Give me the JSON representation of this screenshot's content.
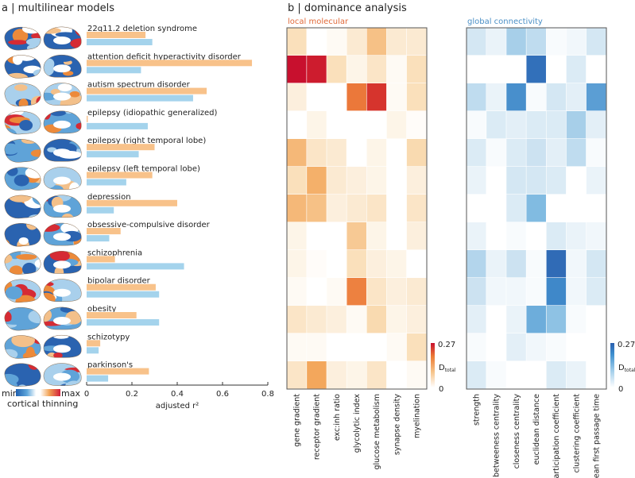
{
  "panel_a": {
    "title": "a | multilinear models",
    "legend": {
      "min": "min",
      "max": "max",
      "label": "cortical thinning"
    },
    "colors": {
      "local": "#f8c28a",
      "global": "#a4d3ec"
    }
  },
  "panel_b": {
    "title": "b | dominance analysis",
    "local_title": "local molecular",
    "global_title": "global connectivity",
    "colors": {
      "local_title": "#e06a3a",
      "global_title": "#4a8fc6"
    },
    "colorbar_local": {
      "max": "0.27",
      "min": "0",
      "label": "D",
      "sub": "total"
    },
    "colorbar_global": {
      "max": "0.27",
      "min": "0",
      "label": "D",
      "sub": "total"
    }
  },
  "chart_data": [
    {
      "type": "bar",
      "orientation": "horizontal",
      "categories": [
        "22q11.2 deletion syndrome",
        "attention deficit hyperactivity disorder",
        "autism spectrum disorder",
        "epilepsy (idiopathic generalized)",
        "epilepsy (right temporal lobe)",
        "epilepsy (left temporal lobe)",
        "depression",
        "obsessive-compulsive disorder",
        "schizophrenia",
        "bipolar disorder",
        "obesity",
        "schizotypy",
        "parkinson's"
      ],
      "series": [
        {
          "values": [
            0.26,
            0.73,
            0.53,
            0.005,
            0.3,
            0.29,
            0.4,
            0.15,
            0.125,
            0.305,
            0.22,
            0.06,
            0.275
          ],
          "color": "#f8c28a"
        },
        {
          "values": [
            0.29,
            0.24,
            0.47,
            0.27,
            0.23,
            0.175,
            0.12,
            0.1,
            0.43,
            0.32,
            0.32,
            0.053,
            0.095
          ],
          "color": "#a4d3ec"
        }
      ],
      "xlabel": "adjusted r²",
      "xlim": [
        0,
        0.8
      ],
      "xticks": [
        "0",
        "0.2",
        "0.4",
        "0.6",
        "0.8"
      ]
    },
    {
      "type": "heatmap",
      "title": "local molecular",
      "columns": [
        "gene gradient",
        "receptor gradient",
        "exc:inh ratio",
        "glycolytic index",
        "glucose metabolism",
        "synapse density",
        "myelination"
      ],
      "rows_ref": "same as bar categories",
      "range": [
        0,
        0.27
      ],
      "colormap": [
        "#ffffff",
        "#f9dcb3",
        "#f2a355",
        "#e8622c",
        "#c8102e"
      ],
      "values": [
        [
          0.06,
          0,
          0.01,
          0.04,
          0.1,
          0.04,
          0.04
        ],
        [
          0.27,
          0.26,
          0.06,
          0.02,
          0.05,
          0.01,
          0.06
        ],
        [
          0.03,
          0,
          0,
          0.18,
          0.24,
          0.01,
          0.06
        ],
        [
          0,
          0.02,
          0,
          0,
          0,
          0.02,
          0.005
        ],
        [
          0.11,
          0.05,
          0.04,
          0,
          0.02,
          0,
          0.07
        ],
        [
          0.06,
          0.12,
          0.04,
          0.03,
          0.02,
          0,
          0.03
        ],
        [
          0.11,
          0.1,
          0.03,
          0.04,
          0.05,
          0,
          0.05
        ],
        [
          0.02,
          0,
          0,
          0.09,
          0.02,
          0,
          0.03
        ],
        [
          0.02,
          0.005,
          0,
          0.06,
          0.03,
          0.02,
          0
        ],
        [
          0.01,
          0,
          0.01,
          0.17,
          0.05,
          0.03,
          0.04
        ],
        [
          0.05,
          0.04,
          0.03,
          0.01,
          0.07,
          0.02,
          0.03
        ],
        [
          0.01,
          0.01,
          0,
          0,
          0,
          0.01,
          0.06
        ],
        [
          0.05,
          0.13,
          0.03,
          0.02,
          0.05,
          0,
          0.01
        ]
      ]
    },
    {
      "type": "heatmap",
      "title": "global connectivity",
      "columns": [
        "strength",
        "betweeness centrality",
        "closeness centrality",
        "euclidean distance",
        "participation coefficient",
        "clustering coefficient",
        "mean first passage time"
      ],
      "range": [
        0,
        0.27
      ],
      "colormap": [
        "#ffffff",
        "#cfe4f2",
        "#7bb8e0",
        "#3d86c8",
        "#2a5fae"
      ],
      "values": [
        [
          0.06,
          0.03,
          0.1,
          0.08,
          0.01,
          0.02,
          0.06
        ],
        [
          0,
          0,
          0,
          0.24,
          0,
          0.05,
          0
        ],
        [
          0.08,
          0.03,
          0.19,
          0.01,
          0.06,
          0.04,
          0.17
        ],
        [
          0.01,
          0.05,
          0.04,
          0.05,
          0.05,
          0.1,
          0.04
        ],
        [
          0.05,
          0.01,
          0.05,
          0.07,
          0.04,
          0.08,
          0.01
        ],
        [
          0.03,
          0,
          0.06,
          0.06,
          0.05,
          0,
          0.03
        ],
        [
          0,
          0,
          0.05,
          0.13,
          0,
          0,
          0
        ],
        [
          0.03,
          0,
          0.01,
          0,
          0.05,
          0.03,
          0.02
        ],
        [
          0.09,
          0.03,
          0.07,
          0.01,
          0.25,
          0.02,
          0.06
        ],
        [
          0.07,
          0.02,
          0.02,
          0.01,
          0.2,
          0.02,
          0.05
        ],
        [
          0.04,
          0,
          0.03,
          0.15,
          0.12,
          0.01,
          0
        ],
        [
          0.01,
          0,
          0.04,
          0.02,
          0.01,
          0,
          0
        ],
        [
          0.05,
          0.01,
          0,
          0,
          0.05,
          0.03,
          0
        ]
      ]
    }
  ]
}
